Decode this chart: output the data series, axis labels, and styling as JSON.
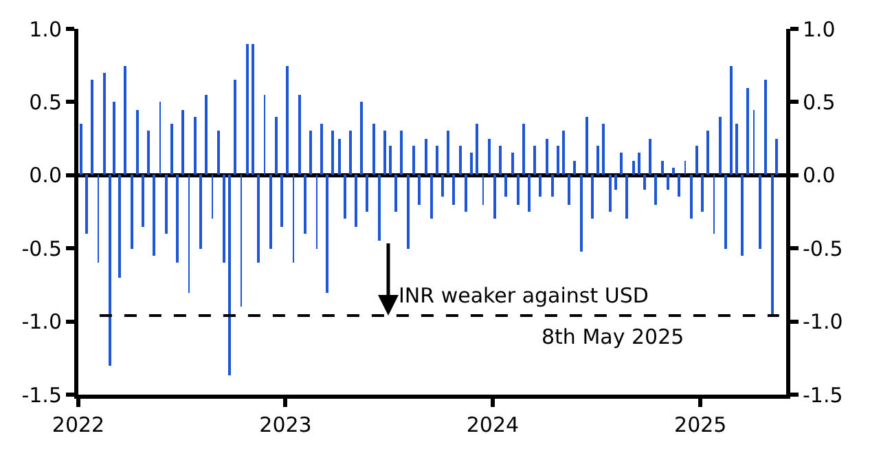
{
  "chart_data": {
    "type": "bar",
    "x": [
      "2022-01-05",
      "2022-01-15",
      "2022-01-25",
      "2022-02-05",
      "2022-02-15",
      "2022-02-25",
      "2022-03-05",
      "2022-03-15",
      "2022-03-25",
      "2022-04-05",
      "2022-04-15",
      "2022-04-25",
      "2022-05-05",
      "2022-05-15",
      "2022-05-25",
      "2022-06-05",
      "2022-06-15",
      "2022-06-25",
      "2022-07-05",
      "2022-07-15",
      "2022-07-25",
      "2022-08-05",
      "2022-08-15",
      "2022-08-25",
      "2022-09-05",
      "2022-09-15",
      "2022-09-25",
      "2022-10-05",
      "2022-10-15",
      "2022-10-25",
      "2022-11-05",
      "2022-11-15",
      "2022-11-25",
      "2022-12-05",
      "2022-12-15",
      "2022-12-25",
      "2023-01-05",
      "2023-01-15",
      "2023-01-25",
      "2023-02-05",
      "2023-02-15",
      "2023-02-25",
      "2023-03-05",
      "2023-03-15",
      "2023-03-25",
      "2023-04-05",
      "2023-04-15",
      "2023-04-25",
      "2023-05-05",
      "2023-05-15",
      "2023-05-25",
      "2023-06-05",
      "2023-06-15",
      "2023-06-25",
      "2023-07-05",
      "2023-07-15",
      "2023-07-25",
      "2023-08-05",
      "2023-08-15",
      "2023-08-25",
      "2023-09-05",
      "2023-09-15",
      "2023-09-25",
      "2023-10-05",
      "2023-10-15",
      "2023-10-25",
      "2023-11-05",
      "2023-11-15",
      "2023-11-25",
      "2023-12-05",
      "2023-12-15",
      "2023-12-25",
      "2024-01-05",
      "2024-01-15",
      "2024-01-25",
      "2024-02-05",
      "2024-02-15",
      "2024-02-25",
      "2024-03-05",
      "2024-03-15",
      "2024-03-25",
      "2024-04-05",
      "2024-04-15",
      "2024-04-25",
      "2024-05-05",
      "2024-05-15",
      "2024-05-25",
      "2024-06-05",
      "2024-06-15",
      "2024-06-25",
      "2024-07-05",
      "2024-07-15",
      "2024-07-25",
      "2024-08-05",
      "2024-08-15",
      "2024-08-25",
      "2024-09-05",
      "2024-09-15",
      "2024-09-25",
      "2024-10-05",
      "2024-10-15",
      "2024-10-25",
      "2024-11-05",
      "2024-11-15",
      "2024-11-25",
      "2024-12-05",
      "2024-12-15",
      "2024-12-25",
      "2025-01-05",
      "2025-01-15",
      "2025-01-25",
      "2025-02-05",
      "2025-02-15",
      "2025-02-25",
      "2025-03-05",
      "2025-03-15",
      "2025-03-25",
      "2025-04-05",
      "2025-04-15",
      "2025-04-25",
      "2025-05-08",
      "2025-05-15"
    ],
    "values": [
      0.35,
      -0.4,
      0.65,
      -0.6,
      0.7,
      -1.3,
      0.5,
      -0.7,
      0.75,
      -0.5,
      0.45,
      -0.35,
      0.3,
      -0.55,
      0.5,
      -0.4,
      0.35,
      -0.6,
      0.45,
      -0.8,
      0.4,
      -0.5,
      0.55,
      -0.3,
      0.3,
      -0.6,
      -1.37,
      0.65,
      -0.9,
      0.9,
      0.9,
      -0.6,
      0.55,
      -0.5,
      0.4,
      -0.35,
      0.75,
      -0.6,
      0.55,
      -0.4,
      0.3,
      -0.5,
      0.35,
      -0.8,
      0.3,
      0.25,
      -0.3,
      0.3,
      -0.35,
      0.5,
      -0.25,
      0.35,
      -0.45,
      0.3,
      0.2,
      -0.25,
      0.3,
      -0.5,
      0.2,
      -0.2,
      0.25,
      -0.3,
      0.2,
      -0.15,
      0.3,
      -0.2,
      0.2,
      -0.25,
      0.15,
      0.35,
      -0.2,
      0.25,
      -0.3,
      0.2,
      -0.15,
      0.15,
      -0.2,
      0.35,
      -0.25,
      0.2,
      -0.15,
      0.25,
      -0.15,
      0.2,
      0.3,
      -0.2,
      0.1,
      -0.52,
      0.4,
      -0.3,
      0.2,
      0.35,
      -0.25,
      -0.1,
      0.15,
      -0.3,
      0.1,
      0.15,
      -0.1,
      0.25,
      -0.2,
      0.1,
      -0.1,
      0.05,
      -0.15,
      0.1,
      -0.3,
      0.2,
      -0.25,
      0.3,
      -0.4,
      0.4,
      -0.5,
      0.75,
      0.35,
      -0.55,
      0.6,
      0.45,
      -0.5,
      0.65,
      -0.96,
      0.25
    ],
    "color": "#1f56d6",
    "xlim": [
      "2022-01-01",
      "2025-06-01"
    ],
    "xticks": [
      "2022",
      "2023",
      "2024",
      "2025"
    ],
    "ylim": [
      -1.5,
      1.0
    ],
    "yticks": [
      {
        "value": -1.5,
        "label": "-1.5"
      },
      {
        "value": -1.0,
        "label": "-1.0"
      },
      {
        "value": -0.5,
        "label": "-0.5"
      },
      {
        "value": 0,
        "label": "0.0"
      },
      {
        "value": 0.5,
        "label": "0.5"
      },
      {
        "value": 1.0,
        "label": "1.0"
      }
    ],
    "y2lim": [
      -1.5,
      1.0
    ],
    "y2ticks": [
      {
        "value": -1.5,
        "label": "-1.5"
      },
      {
        "value": -1.0,
        "label": "-1.0"
      },
      {
        "value": -0.5,
        "label": "-0.5"
      },
      {
        "value": 0,
        "label": "0.0"
      },
      {
        "value": 0.5,
        "label": "0.5"
      },
      {
        "value": 1.0,
        "label": "1.0"
      }
    ],
    "ref_lines": [
      {
        "axis": "y",
        "value": -0.96,
        "label": "8th May 2025",
        "color": "#000000",
        "line_style": "dashed"
      }
    ],
    "annotations": [
      {
        "text": "INR weaker against USD",
        "x": "2023-07-01",
        "y": -0.96
      }
    ]
  }
}
